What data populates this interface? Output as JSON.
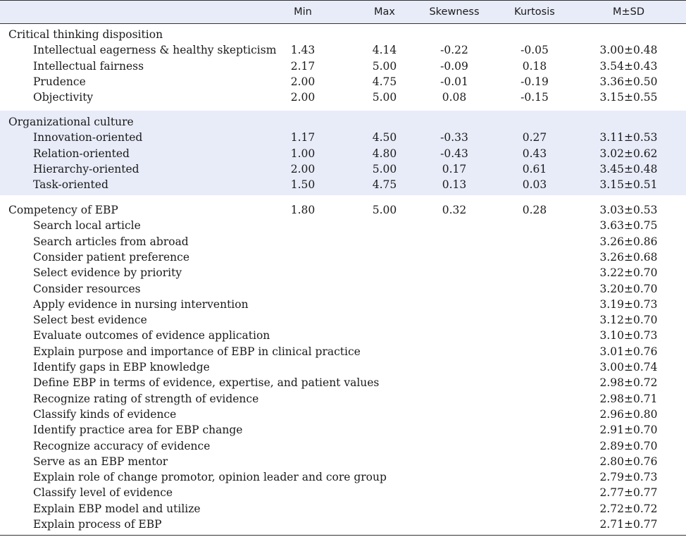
{
  "header": {
    "col_min": "Min",
    "col_max": "Max",
    "col_skewness": "Skewness",
    "col_kurtosis": "Kurtosis",
    "col_msd": "M±SD"
  },
  "sections": [
    {
      "label": "Critical thinking disposition",
      "shaded": false,
      "rows": [
        {
          "label": "Intellectual eagerness & healthy skepticism",
          "min": "1.43",
          "max": "4.14",
          "skewness": "-0.22",
          "kurtosis": "-0.05",
          "msd": "3.00±0.48"
        },
        {
          "label": "Intellectual fairness",
          "min": "2.17",
          "max": "5.00",
          "skewness": "-0.09",
          "kurtosis": "0.18",
          "msd": "3.54±0.43"
        },
        {
          "label": "Prudence",
          "min": "2.00",
          "max": "4.75",
          "skewness": "-0.01",
          "kurtosis": "-0.19",
          "msd": "3.36±0.50"
        },
        {
          "label": "Objectivity",
          "min": "2.00",
          "max": "5.00",
          "skewness": "0.08",
          "kurtosis": "-0.15",
          "msd": "3.15±0.55"
        }
      ]
    },
    {
      "label": "Organizational culture",
      "shaded": true,
      "rows": [
        {
          "label": "Innovation-oriented",
          "min": "1.17",
          "max": "4.50",
          "skewness": "-0.33",
          "kurtosis": "0.27",
          "msd": "3.11±0.53"
        },
        {
          "label": "Relation-oriented",
          "min": "1.00",
          "max": "4.80",
          "skewness": "-0.43",
          "kurtosis": "0.43",
          "msd": "3.02±0.62"
        },
        {
          "label": "Hierarchy-oriented",
          "min": "2.00",
          "max": "5.00",
          "skewness": "0.17",
          "kurtosis": "0.61",
          "msd": "3.45±0.48"
        },
        {
          "label": "Task-oriented",
          "min": "1.50",
          "max": "4.75",
          "skewness": "0.13",
          "kurtosis": "0.03",
          "msd": "3.15±0.51"
        }
      ]
    },
    {
      "label": "Competency of EBP",
      "shaded": false,
      "summary": {
        "min": "1.80",
        "max": "5.00",
        "skewness": "0.32",
        "kurtosis": "0.28",
        "msd": "3.03±0.53"
      },
      "rows": [
        {
          "label": "Search local article",
          "msd": "3.63±0.75"
        },
        {
          "label": "Search articles from abroad",
          "msd": "3.26±0.86"
        },
        {
          "label": "Consider patient preference",
          "msd": "3.26±0.68"
        },
        {
          "label": "Select evidence by priority",
          "msd": "3.22±0.70"
        },
        {
          "label": "Consider resources",
          "msd": "3.20±0.70"
        },
        {
          "label": "Apply evidence in nursing intervention",
          "msd": "3.19±0.73"
        },
        {
          "label": "Select best evidence",
          "msd": "3.12±0.70"
        },
        {
          "label": "Evaluate outcomes of evidence application",
          "msd": "3.10±0.73"
        },
        {
          "label": "Explain purpose and importance of EBP in clinical practice",
          "msd": "3.01±0.76"
        },
        {
          "label": "Identify gaps in EBP knowledge",
          "msd": "3.00±0.74"
        },
        {
          "label": "Define EBP in terms of evidence, expertise, and patient values",
          "msd": "2.98±0.72"
        },
        {
          "label": "Recognize rating of strength of evidence",
          "msd": "2.98±0.71"
        },
        {
          "label": "Classify kinds of evidence",
          "msd": "2.96±0.80"
        },
        {
          "label": "Identify practice area for EBP change",
          "msd": "2.91±0.70"
        },
        {
          "label": "Recognize accuracy of evidence",
          "msd": "2.89±0.70"
        },
        {
          "label": "Serve as an EBP mentor",
          "msd": "2.80±0.76"
        },
        {
          "label": "Explain role of change promotor, opinion leader and core group",
          "msd": "2.79±0.73"
        },
        {
          "label": "Classify level of evidence",
          "msd": "2.77±0.77"
        },
        {
          "label": "Explain EBP model and utilize",
          "msd": "2.72±0.72"
        },
        {
          "label": "Explain process of EBP",
          "msd": "2.71±0.77"
        }
      ]
    }
  ]
}
